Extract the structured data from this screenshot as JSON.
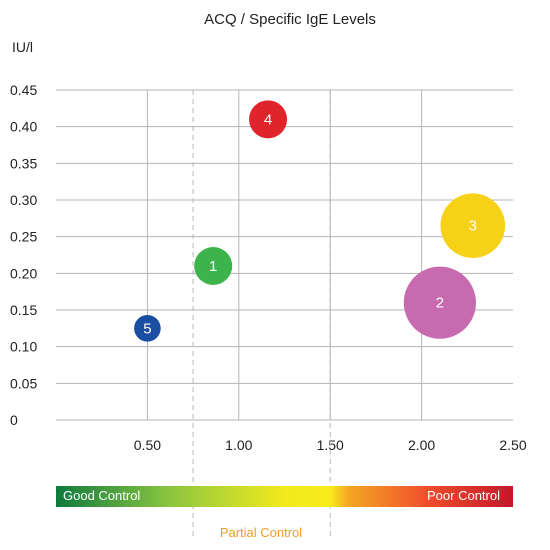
{
  "chart_data": {
    "type": "scatter",
    "title": "ACQ / Specific IgE Levels",
    "ylabel": "IU/l",
    "xlabel": "",
    "xlim": [
      0,
      2.5
    ],
    "ylim": [
      0,
      0.45
    ],
    "x_ticks": [
      "0.50",
      "1.00",
      "1.50",
      "2.00",
      "2.50"
    ],
    "y_ticks": [
      "0",
      "0.05",
      "0.10",
      "0.15",
      "0.20",
      "0.25",
      "0.30",
      "0.35",
      "0.40",
      "0.45"
    ],
    "points": [
      {
        "label": "1",
        "x": 0.86,
        "y": 0.21,
        "size": 1.0,
        "color": "#3cb44b"
      },
      {
        "label": "2",
        "x": 2.1,
        "y": 0.16,
        "size": 1.9,
        "color": "#c86ab0"
      },
      {
        "label": "3",
        "x": 2.28,
        "y": 0.265,
        "size": 1.7,
        "color": "#f7d117"
      },
      {
        "label": "4",
        "x": 1.16,
        "y": 0.41,
        "size": 1.0,
        "color": "#e0242b"
      },
      {
        "label": "5",
        "x": 0.5,
        "y": 0.125,
        "size": 0.7,
        "color": "#1a4ea2"
      }
    ],
    "control_bands": {
      "good_label": "Good Control",
      "partial_label": "Partial Control",
      "poor_label": "Poor Control",
      "boundaries": [
        0.75,
        1.5
      ],
      "gradient_colors": [
        "#0e7a3e",
        "#8cc63f",
        "#f2ea1d",
        "#f7ec1c",
        "#f5a623",
        "#ee4b2b",
        "#c4172c"
      ],
      "good_color": "#ffffff",
      "partial_color": "#f29c1f",
      "poor_color": "#ffffff"
    },
    "grid": true
  }
}
